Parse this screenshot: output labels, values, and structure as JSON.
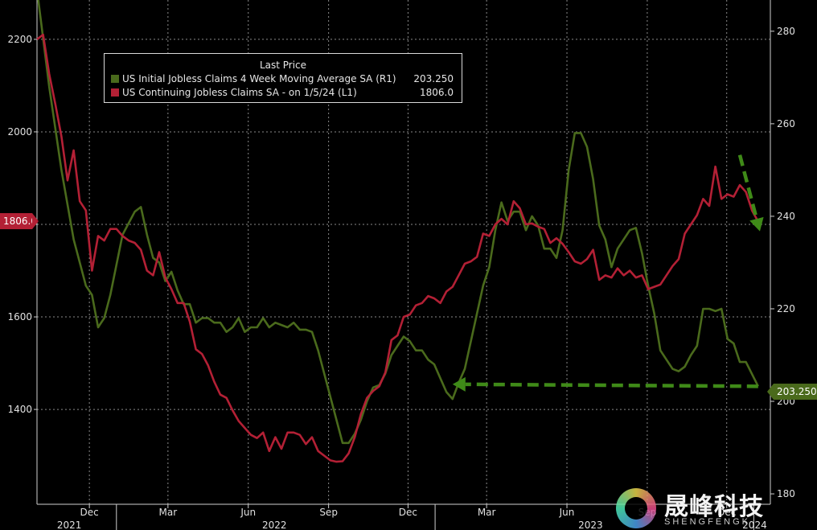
{
  "chart_data": {
    "type": "line",
    "title": "",
    "legend": {
      "header": "Last Price",
      "placement": "top-left",
      "entries": [
        {
          "label": "US Initial Jobless Claims 4 Week Moving Average SA  (R1)",
          "value": "203.250",
          "color": "#4a6a1c"
        },
        {
          "label": "US Continuing Jobless Claims SA -  on 1/5/24  (L1)",
          "value": "1806.0",
          "color": "#b32035"
        }
      ]
    },
    "x_range": [
      "2021-10-02",
      "2024-01-20"
    ],
    "x_ticks": [
      {
        "date": "2021-12-01",
        "label": "Dec"
      },
      {
        "date": "2022-03-01",
        "label": "Mar"
      },
      {
        "date": "2022-06-01",
        "label": "Jun"
      },
      {
        "date": "2022-09-01",
        "label": "Sep"
      },
      {
        "date": "2022-12-01",
        "label": "Dec"
      },
      {
        "date": "2023-03-01",
        "label": "Mar"
      },
      {
        "date": "2023-06-01",
        "label": "Jun"
      },
      {
        "date": "2023-09-01",
        "label": "Sep"
      },
      {
        "date": "2023-12-01",
        "label": "Dec"
      }
    ],
    "year_labels": [
      {
        "date": "2021-11-08",
        "label": "2021"
      },
      {
        "date": "2022-07-01",
        "label": "2022"
      },
      {
        "date": "2023-06-28",
        "label": "2023"
      },
      {
        "date": "2024-01-02",
        "label": "2024"
      }
    ],
    "year_dividers": [
      "2022-01-01",
      "2023-01-01",
      "2024-01-01"
    ],
    "y_left": {
      "ticks": [
        1400,
        1600,
        1800,
        2000,
        2200
      ],
      "range": [
        1195,
        2285
      ],
      "last_value_tag": "1806.0",
      "last_value": 1806
    },
    "y_right": {
      "ticks": [
        180,
        200,
        220,
        240,
        260,
        280
      ],
      "range": [
        177.75,
        286.75
      ],
      "last_value_tag": "203.250",
      "last_value": 203.25
    },
    "grid": true,
    "series": [
      {
        "name": "US Initial Jobless Claims 4 Week Moving Average SA  (R1)",
        "axis": "right",
        "color": "#4a6a1c",
        "points": [
          [
            "2021-10-02",
            289
          ],
          [
            "2021-10-16",
            268
          ],
          [
            "2021-10-30",
            250
          ],
          [
            "2021-11-13",
            235
          ],
          [
            "2021-11-27",
            225
          ],
          [
            "2021-12-04",
            223
          ],
          [
            "2021-12-11",
            216
          ],
          [
            "2021-12-18",
            218
          ],
          [
            "2021-12-25",
            223
          ],
          [
            "2022-01-08",
            236
          ],
          [
            "2022-01-22",
            241
          ],
          [
            "2022-01-29",
            242
          ],
          [
            "2022-02-05",
            236
          ],
          [
            "2022-02-12",
            231
          ],
          [
            "2022-02-19",
            230
          ],
          [
            "2022-02-26",
            226
          ],
          [
            "2022-03-05",
            228
          ],
          [
            "2022-03-12",
            224
          ],
          [
            "2022-03-19",
            221
          ],
          [
            "2022-03-26",
            221
          ],
          [
            "2022-04-02",
            217
          ],
          [
            "2022-04-09",
            218
          ],
          [
            "2022-04-16",
            218
          ],
          [
            "2022-04-23",
            217
          ],
          [
            "2022-04-30",
            217
          ],
          [
            "2022-05-07",
            215
          ],
          [
            "2022-05-14",
            216
          ],
          [
            "2022-05-21",
            218
          ],
          [
            "2022-05-28",
            215
          ],
          [
            "2022-06-04",
            216
          ],
          [
            "2022-06-11",
            216
          ],
          [
            "2022-06-18",
            218
          ],
          [
            "2022-06-25",
            216
          ],
          [
            "2022-07-02",
            217
          ],
          [
            "2022-07-09",
            216.5
          ],
          [
            "2022-07-16",
            216
          ],
          [
            "2022-07-23",
            217
          ],
          [
            "2022-07-30",
            215.5
          ],
          [
            "2022-08-06",
            215.5
          ],
          [
            "2022-08-13",
            215
          ],
          [
            "2022-08-20",
            211
          ],
          [
            "2022-08-27",
            206
          ],
          [
            "2022-09-03",
            201
          ],
          [
            "2022-09-10",
            196
          ],
          [
            "2022-09-17",
            191
          ],
          [
            "2022-09-24",
            191
          ],
          [
            "2022-10-01",
            193
          ],
          [
            "2022-10-08",
            196
          ],
          [
            "2022-10-15",
            200
          ],
          [
            "2022-10-22",
            203
          ],
          [
            "2022-10-29",
            203.5
          ],
          [
            "2022-11-05",
            206
          ],
          [
            "2022-11-12",
            210
          ],
          [
            "2022-11-19",
            212
          ],
          [
            "2022-11-26",
            214
          ],
          [
            "2022-12-03",
            213
          ],
          [
            "2022-12-10",
            211
          ],
          [
            "2022-12-17",
            211
          ],
          [
            "2022-12-24",
            209
          ],
          [
            "2022-12-31",
            208
          ],
          [
            "2023-01-07",
            205
          ],
          [
            "2023-01-14",
            202
          ],
          [
            "2023-01-21",
            200.5
          ],
          [
            "2023-01-28",
            204
          ],
          [
            "2023-02-04",
            207
          ],
          [
            "2023-02-11",
            213
          ],
          [
            "2023-02-18",
            219
          ],
          [
            "2023-02-25",
            225
          ],
          [
            "2023-03-04",
            229
          ],
          [
            "2023-03-11",
            237
          ],
          [
            "2023-03-18",
            243
          ],
          [
            "2023-03-25",
            239
          ],
          [
            "2023-04-01",
            241
          ],
          [
            "2023-04-08",
            241
          ],
          [
            "2023-04-15",
            237
          ],
          [
            "2023-04-22",
            240
          ],
          [
            "2023-04-29",
            238
          ],
          [
            "2023-05-06",
            233
          ],
          [
            "2023-05-13",
            233
          ],
          [
            "2023-05-20",
            231
          ],
          [
            "2023-05-27",
            237
          ],
          [
            "2023-06-03",
            250
          ],
          [
            "2023-06-10",
            258
          ],
          [
            "2023-06-17",
            258
          ],
          [
            "2023-06-24",
            255
          ],
          [
            "2023-07-01",
            248
          ],
          [
            "2023-07-08",
            238
          ],
          [
            "2023-07-15",
            235
          ],
          [
            "2023-07-22",
            229
          ],
          [
            "2023-07-29",
            233
          ],
          [
            "2023-08-05",
            235
          ],
          [
            "2023-08-12",
            237
          ],
          [
            "2023-08-19",
            237.5
          ],
          [
            "2023-08-26",
            232
          ],
          [
            "2023-09-02",
            225
          ],
          [
            "2023-09-09",
            219
          ],
          [
            "2023-09-16",
            211
          ],
          [
            "2023-09-23",
            209
          ],
          [
            "2023-09-30",
            207
          ],
          [
            "2023-10-07",
            206.5
          ],
          [
            "2023-10-14",
            207.5
          ],
          [
            "2023-10-21",
            210
          ],
          [
            "2023-10-28",
            212
          ],
          [
            "2023-11-04",
            220
          ],
          [
            "2023-11-11",
            220
          ],
          [
            "2023-11-18",
            219.5
          ],
          [
            "2023-11-25",
            220
          ],
          [
            "2023-12-02",
            213.5
          ],
          [
            "2023-12-09",
            212.5
          ],
          [
            "2023-12-16",
            208.5
          ],
          [
            "2023-12-23",
            208.5
          ],
          [
            "2024-01-06",
            203.25
          ]
        ]
      },
      {
        "name": "US Continuing Jobless Claims SA -  on 1/5/24  (L1)",
        "axis": "left",
        "color": "#b32035",
        "points": [
          [
            "2021-10-02",
            2200
          ],
          [
            "2021-10-09",
            2210
          ],
          [
            "2021-10-16",
            2125
          ],
          [
            "2021-10-23",
            2060
          ],
          [
            "2021-10-30",
            1990
          ],
          [
            "2021-11-06",
            1895
          ],
          [
            "2021-11-13",
            1960
          ],
          [
            "2021-11-20",
            1850
          ],
          [
            "2021-11-27",
            1830
          ],
          [
            "2021-12-04",
            1700
          ],
          [
            "2021-12-11",
            1775
          ],
          [
            "2021-12-18",
            1765
          ],
          [
            "2021-12-25",
            1790
          ],
          [
            "2022-01-01",
            1790
          ],
          [
            "2022-01-08",
            1775
          ],
          [
            "2022-01-15",
            1765
          ],
          [
            "2022-01-22",
            1760
          ],
          [
            "2022-01-29",
            1745
          ],
          [
            "2022-02-05",
            1700
          ],
          [
            "2022-02-12",
            1690
          ],
          [
            "2022-02-19",
            1740
          ],
          [
            "2022-02-26",
            1685
          ],
          [
            "2022-03-05",
            1660
          ],
          [
            "2022-03-12",
            1630
          ],
          [
            "2022-03-19",
            1630
          ],
          [
            "2022-03-26",
            1590
          ],
          [
            "2022-04-02",
            1530
          ],
          [
            "2022-04-09",
            1520
          ],
          [
            "2022-04-16",
            1495
          ],
          [
            "2022-04-23",
            1460
          ],
          [
            "2022-04-30",
            1432
          ],
          [
            "2022-05-07",
            1425
          ],
          [
            "2022-05-14",
            1398
          ],
          [
            "2022-05-21",
            1375
          ],
          [
            "2022-05-28",
            1360
          ],
          [
            "2022-06-04",
            1345
          ],
          [
            "2022-06-11",
            1338
          ],
          [
            "2022-06-18",
            1350
          ],
          [
            "2022-06-25",
            1310
          ],
          [
            "2022-07-02",
            1340
          ],
          [
            "2022-07-09",
            1315
          ],
          [
            "2022-07-16",
            1350
          ],
          [
            "2022-07-23",
            1350
          ],
          [
            "2022-07-30",
            1345
          ],
          [
            "2022-08-06",
            1325
          ],
          [
            "2022-08-13",
            1340
          ],
          [
            "2022-08-20",
            1310
          ],
          [
            "2022-08-27",
            1300
          ],
          [
            "2022-09-03",
            1290
          ],
          [
            "2022-09-10",
            1287
          ],
          [
            "2022-09-17",
            1288
          ],
          [
            "2022-09-24",
            1305
          ],
          [
            "2022-10-01",
            1340
          ],
          [
            "2022-10-08",
            1390
          ],
          [
            "2022-10-15",
            1425
          ],
          [
            "2022-10-22",
            1440
          ],
          [
            "2022-10-29",
            1450
          ],
          [
            "2022-11-05",
            1480
          ],
          [
            "2022-11-12",
            1550
          ],
          [
            "2022-11-19",
            1560
          ],
          [
            "2022-11-26",
            1600
          ],
          [
            "2022-12-03",
            1605
          ],
          [
            "2022-12-10",
            1625
          ],
          [
            "2022-12-17",
            1630
          ],
          [
            "2022-12-24",
            1645
          ],
          [
            "2022-12-31",
            1640
          ],
          [
            "2023-01-07",
            1630
          ],
          [
            "2023-01-14",
            1655
          ],
          [
            "2023-01-21",
            1665
          ],
          [
            "2023-01-28",
            1690
          ],
          [
            "2023-02-04",
            1715
          ],
          [
            "2023-02-11",
            1720
          ],
          [
            "2023-02-18",
            1730
          ],
          [
            "2023-02-25",
            1780
          ],
          [
            "2023-03-04",
            1775
          ],
          [
            "2023-03-11",
            1800
          ],
          [
            "2023-03-18",
            1812
          ],
          [
            "2023-03-25",
            1800
          ],
          [
            "2023-04-01",
            1850
          ],
          [
            "2023-04-08",
            1835
          ],
          [
            "2023-04-15",
            1800
          ],
          [
            "2023-04-22",
            1802
          ],
          [
            "2023-04-29",
            1795
          ],
          [
            "2023-05-06",
            1790
          ],
          [
            "2023-05-13",
            1760
          ],
          [
            "2023-05-20",
            1770
          ],
          [
            "2023-05-27",
            1758
          ],
          [
            "2023-06-03",
            1740
          ],
          [
            "2023-06-10",
            1720
          ],
          [
            "2023-06-17",
            1715
          ],
          [
            "2023-06-24",
            1725
          ],
          [
            "2023-07-01",
            1745
          ],
          [
            "2023-07-08",
            1680
          ],
          [
            "2023-07-15",
            1690
          ],
          [
            "2023-07-22",
            1685
          ],
          [
            "2023-07-29",
            1705
          ],
          [
            "2023-08-05",
            1690
          ],
          [
            "2023-08-12",
            1700
          ],
          [
            "2023-08-19",
            1685
          ],
          [
            "2023-08-26",
            1690
          ],
          [
            "2023-09-02",
            1660
          ],
          [
            "2023-09-09",
            1665
          ],
          [
            "2023-09-16",
            1670
          ],
          [
            "2023-09-23",
            1690
          ],
          [
            "2023-09-30",
            1710
          ],
          [
            "2023-10-07",
            1725
          ],
          [
            "2023-10-14",
            1780
          ],
          [
            "2023-10-21",
            1800
          ],
          [
            "2023-10-28",
            1820
          ],
          [
            "2023-11-04",
            1855
          ],
          [
            "2023-11-11",
            1840
          ],
          [
            "2023-11-18",
            1925
          ],
          [
            "2023-11-25",
            1855
          ],
          [
            "2023-12-02",
            1865
          ],
          [
            "2023-12-09",
            1860
          ],
          [
            "2023-12-16",
            1885
          ],
          [
            "2023-12-23",
            1870
          ],
          [
            "2023-12-30",
            1830
          ],
          [
            "2024-01-06",
            1806
          ]
        ]
      }
    ],
    "annotations": [
      {
        "type": "dashed-arrow",
        "color": "#3f8a18",
        "from": [
          "2024-01-06",
          203.25
        ],
        "to": [
          "2023-01-21",
          203.7
        ],
        "axis": "right"
      },
      {
        "type": "dashed-arrow",
        "color": "#3f8a18",
        "from": [
          "2023-12-16",
          1950
        ],
        "to": [
          "2024-01-08",
          1785
        ],
        "axis": "left"
      }
    ]
  },
  "watermark": {
    "chinese": "晟峰科技",
    "latin": "SHENGFENGK"
  }
}
